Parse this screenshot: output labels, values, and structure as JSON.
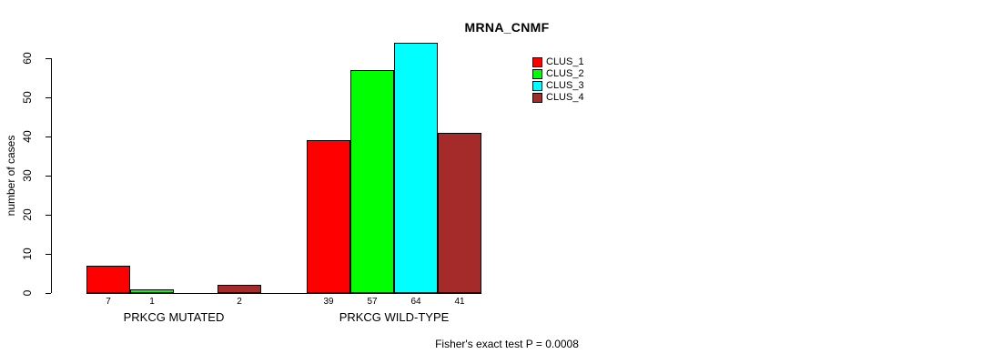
{
  "chart_data": {
    "type": "bar",
    "title": "MRNA_CNMF",
    "ylabel": "number of cases",
    "xlabel": "",
    "annotation": "Fisher's exact test P = 0.0008",
    "categories": [
      "PRKCG MUTATED",
      "PRKCG WILD-TYPE"
    ],
    "series": [
      {
        "name": "CLUS_1",
        "color": "#FF0000",
        "values": [
          7,
          39
        ]
      },
      {
        "name": "CLUS_2",
        "color": "#00FF00",
        "values": [
          1,
          57
        ]
      },
      {
        "name": "CLUS_3",
        "color": "#00FFFF",
        "values": [
          0,
          64
        ]
      },
      {
        "name": "CLUS_4",
        "color": "#A52A2A",
        "values": [
          2,
          41
        ]
      }
    ],
    "bar_value_labels": [
      [
        "7",
        "1",
        "",
        "2"
      ],
      [
        "39",
        "57",
        "64",
        "41"
      ]
    ],
    "yticks": [
      0,
      10,
      20,
      30,
      40,
      50,
      60
    ],
    "ylim": [
      0,
      65
    ],
    "grid": false,
    "legend_position": "top-right",
    "axis_color": "#000000",
    "bar_border_color": "#000000"
  }
}
